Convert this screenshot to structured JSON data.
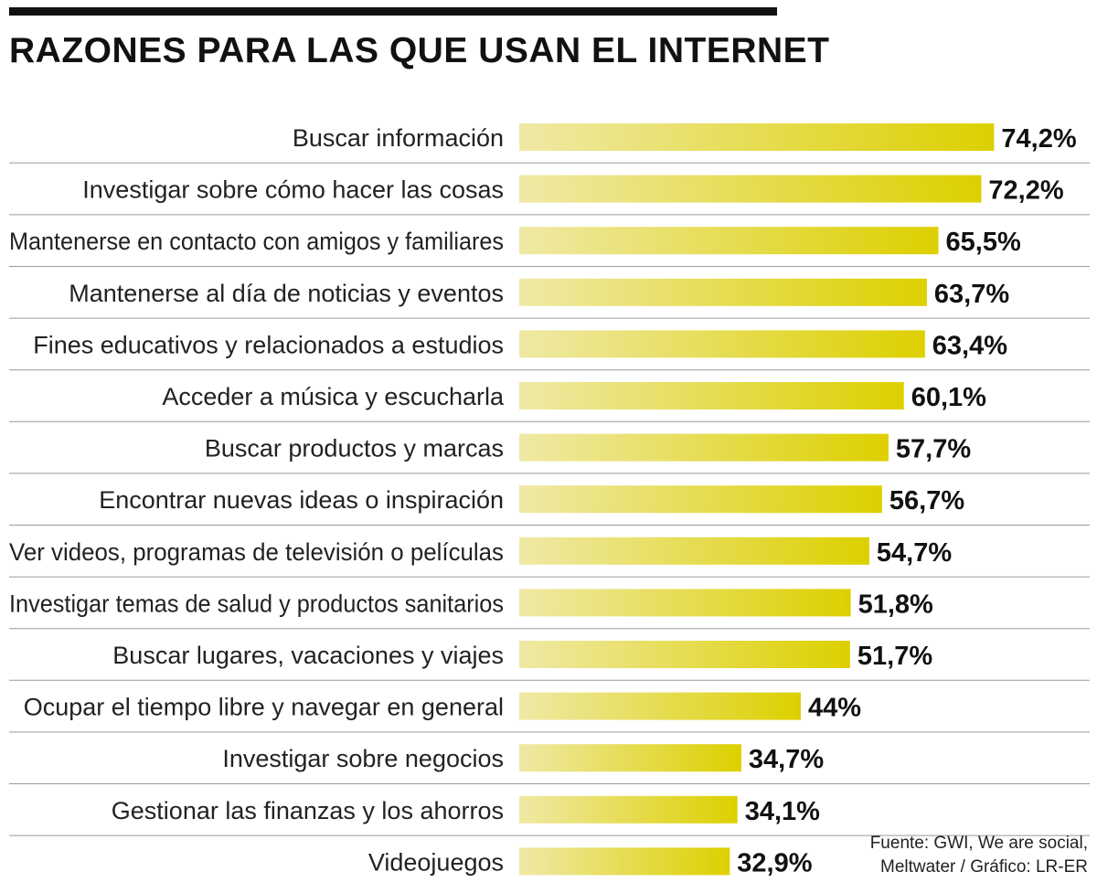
{
  "header": {
    "title": "RAZONES PARA LAS QUE USAN EL INTERNET"
  },
  "source": {
    "line1": "Fuente: GWI, We are social,",
    "line2": "Meltwater / Gráfico: LR-ER"
  },
  "colors": {
    "bar_start": "#efe9a6",
    "bar_end": "#ddd000",
    "separator": "#9a9a9a",
    "rule": "#111111"
  },
  "chart_data": {
    "type": "bar",
    "orientation": "horizontal",
    "title": "RAZONES PARA LAS QUE USAN EL INTERNET",
    "xlabel": "",
    "ylabel": "",
    "grid": false,
    "xlim": [
      0,
      100
    ],
    "categories": [
      "Buscar información",
      "Investigar sobre cómo hacer las cosas",
      "Mantenerse en contacto con amigos y familiares",
      "Mantenerse al día de noticias y eventos",
      "Fines educativos y relacionados a estudios",
      "Acceder a música y escucharla",
      "Buscar productos y marcas",
      "Encontrar nuevas ideas o inspiración",
      "Ver videos, programas de televisión o películas",
      "Investigar temas de salud y productos sanitarios",
      "Buscar lugares, vacaciones y viajes",
      "Ocupar el tiempo libre y navegar en general",
      "Investigar sobre negocios",
      "Gestionar las finanzas y los ahorros",
      "Videojuegos"
    ],
    "values": [
      74.2,
      72.2,
      65.5,
      63.7,
      63.4,
      60.1,
      57.7,
      56.7,
      54.7,
      51.8,
      51.7,
      44,
      34.7,
      34.1,
      32.9
    ],
    "value_labels": [
      "74,2%",
      "72,2%",
      "65,5%",
      "63,7%",
      "63,4%",
      "60,1%",
      "57,7%",
      "56,7%",
      "54,7%",
      "51,8%",
      "51,7%",
      "44%",
      "34,7%",
      "34,1%",
      "32,9%"
    ]
  }
}
